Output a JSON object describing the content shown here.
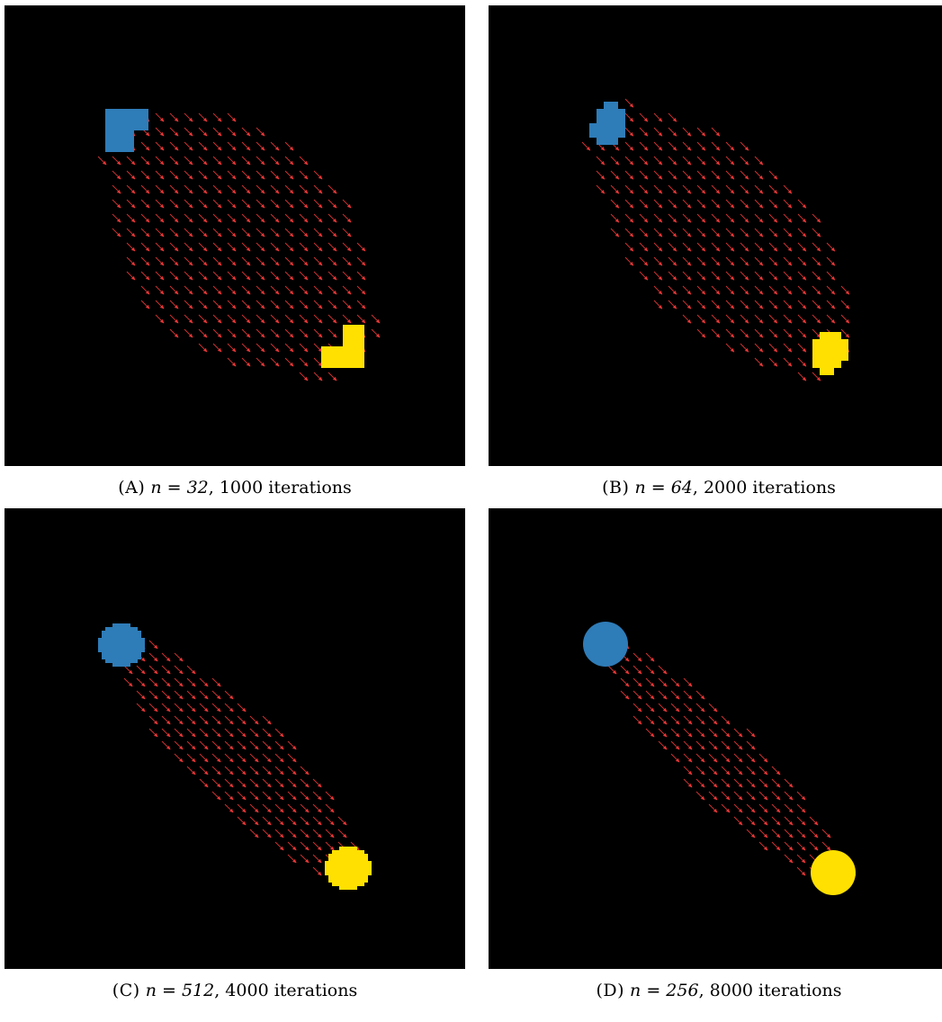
{
  "figure": {
    "colors": {
      "background": "#000000",
      "source": "#2e7cb8",
      "target": "#ffe000",
      "arrows": "#ff3c3c"
    },
    "panels": [
      {
        "id": "a",
        "caption_label": "(A)",
        "caption_n": "n = 32",
        "caption_iterations": ", 1000 iterations",
        "n": 32,
        "iterations": 1000
      },
      {
        "id": "b",
        "caption_label": "(B)",
        "caption_n": "n = 64",
        "caption_iterations": ", 2000 iterations",
        "n": 64,
        "iterations": 2000
      },
      {
        "id": "c",
        "caption_label": "(C)",
        "caption_n": "n = 512",
        "caption_iterations": ", 4000 iterations",
        "n": 512,
        "iterations": 4000
      },
      {
        "id": "d",
        "caption_label": "(D)",
        "caption_n": "n = 256",
        "caption_iterations": ", 8000 iterations",
        "n": 256,
        "iterations": 8000
      }
    ]
  }
}
